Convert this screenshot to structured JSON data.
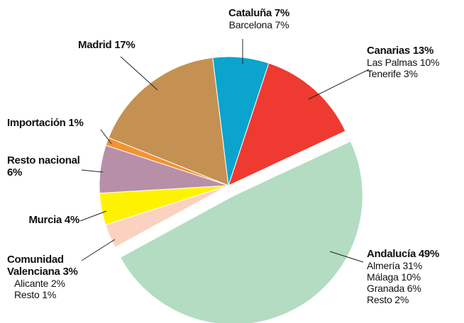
{
  "chart_data": {
    "type": "pie",
    "categories": [
      "Cataluña",
      "Canarias",
      "Andalucía",
      "Comunidad Valenciana",
      "Murcia",
      "Resto nacional",
      "Importación",
      "Madrid"
    ],
    "values": [
      7,
      13,
      49,
      3,
      4,
      6,
      1,
      17
    ],
    "value_labels": [
      "7%",
      "13%",
      "49%",
      "3%",
      "4%",
      "6%",
      "1%",
      "17%"
    ],
    "colors": [
      "#0aa4cc",
      "#ee3a30",
      "#b3dcc3",
      "#fbd2c0",
      "#fff200",
      "#b88fa8",
      "#f39233",
      "#c49152"
    ],
    "details": [
      [
        "Barcelona 7%"
      ],
      [
        "Las Palmas 10%",
        "Tenerife 3%"
      ],
      [
        "Almería 31%",
        "Málaga 10%",
        "Granada 6%",
        "Resto 2%"
      ],
      [
        "Alicante 2%",
        "Resto 1%"
      ],
      [],
      [],
      [],
      []
    ],
    "exploded": "Andalucía"
  }
}
